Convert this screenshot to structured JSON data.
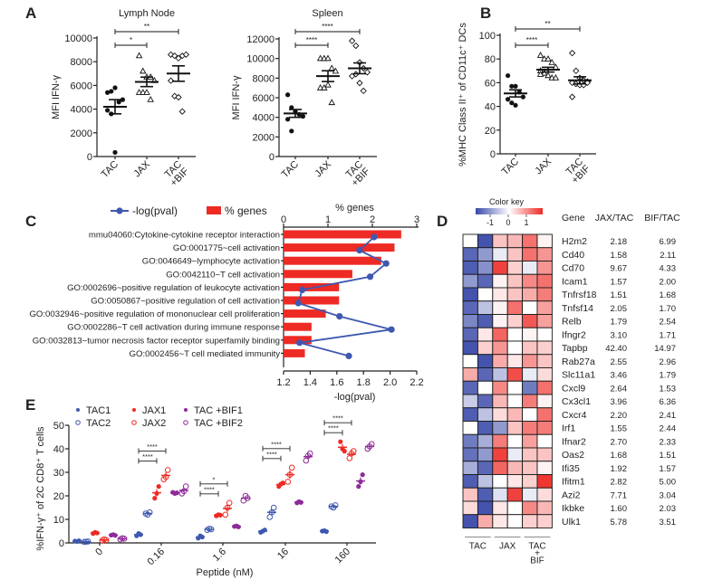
{
  "panel_labels": {
    "a": "A",
    "b": "B",
    "c": "C",
    "d": "D",
    "e": "E"
  },
  "chart_data": [
    {
      "id": "A-lymph",
      "type": "scatter",
      "title": "Lymph Node",
      "ylabel": "MFI IFN-γ",
      "ylim": [
        0,
        10000
      ],
      "yticks": [
        0,
        2000,
        4000,
        6000,
        8000,
        10000
      ],
      "categories": [
        "TAC",
        "JAX",
        "TAC\n+BIF"
      ],
      "markers": [
        "filled-circle",
        "open-triangle",
        "open-diamond"
      ],
      "points": [
        [
          5400,
          5500,
          5800,
          4600,
          4800,
          3900,
          3600,
          350
        ],
        [
          8500,
          7200,
          6700,
          6700,
          6400,
          5400,
          5400,
          5400,
          4800
        ],
        [
          8600,
          8500,
          8300,
          8500,
          8600,
          6400,
          5100,
          5000,
          3800
        ]
      ],
      "mean": [
        4200,
        6300,
        7000
      ],
      "sem": [
        600,
        400,
        650
      ],
      "significance": [
        {
          "from": 0,
          "to": 1,
          "label": "*"
        },
        {
          "from": 0,
          "to": 2,
          "label": "**"
        }
      ]
    },
    {
      "id": "A-spleen",
      "type": "scatter",
      "title": "Spleen",
      "ylabel": "MFI IFN-γ",
      "ylim": [
        0,
        12000
      ],
      "yticks": [
        0,
        2000,
        4000,
        6000,
        8000,
        10000,
        12000
      ],
      "categories": [
        "TAC",
        "JAX",
        "TAC\n+BIF"
      ],
      "markers": [
        "filled-circle",
        "open-triangle",
        "open-diamond"
      ],
      "points": [
        [
          6300,
          5000,
          4600,
          4300,
          4100,
          3800,
          2600
        ],
        [
          10000,
          10000,
          10000,
          9000,
          8700,
          7000,
          7000,
          7300,
          5500
        ],
        [
          11800,
          11300,
          9600,
          9000,
          8600,
          8200,
          8400,
          7500,
          6700
        ]
      ],
      "mean": [
        4400,
        8200,
        9000
      ],
      "sem": [
        400,
        550,
        550
      ],
      "significance": [
        {
          "from": 0,
          "to": 1,
          "label": "****"
        },
        {
          "from": 0,
          "to": 2,
          "label": "****"
        }
      ]
    },
    {
      "id": "B",
      "type": "scatter",
      "title": "",
      "ylabel": "%MHC Class II⁺ of CD11c⁺ DCs",
      "ylim": [
        0,
        100
      ],
      "yticks": [
        0,
        20,
        40,
        60,
        80,
        100
      ],
      "categories": [
        "TAC",
        "JAX",
        "TAC\n+BIF"
      ],
      "markers": [
        "filled-circle",
        "open-triangle",
        "open-diamond"
      ],
      "points": [
        [
          66,
          57,
          57,
          52,
          48,
          46,
          43,
          41
        ],
        [
          83,
          80,
          80,
          77,
          73,
          70,
          68,
          66,
          64,
          64,
          67
        ],
        [
          85,
          70,
          64,
          62,
          61,
          60,
          59,
          58,
          58,
          60,
          48
        ]
      ],
      "mean": [
        51,
        71,
        62
      ],
      "sem": [
        3,
        2,
        3
      ],
      "significance": [
        {
          "from": 0,
          "to": 1,
          "label": "****"
        },
        {
          "from": 0,
          "to": 2,
          "label": "**"
        }
      ]
    },
    {
      "id": "C",
      "type": "bar",
      "legend": [
        {
          "label": "-log(pval)",
          "color": "#3e58b0"
        },
        {
          "label": "% genes",
          "color": "#ee2a24"
        }
      ],
      "top_axis": {
        "label": "% genes",
        "range": [
          0,
          3
        ],
        "ticks": [
          0,
          1,
          2,
          3
        ]
      },
      "bottom_axis": {
        "label": "-log(pval)",
        "range": [
          1.2,
          2.2
        ],
        "ticks": [
          "1.2",
          "1.4",
          "1.6",
          "1.8",
          "2.0",
          "2.2"
        ]
      },
      "categories": [
        "mmu04060:Cytokine-cytokine receptor interaction",
        "GO:0001775~cell activation",
        "GO:0046649~lymphocyte activation",
        "GO:0042110~T cell activation",
        "GO:0002696~positive regulation of leukocyte activation",
        "GO:0050867~positive regulation of cell activation",
        "GO:0032946~positive regulation of mononuclear cell proliferation",
        "GO:0002286~T cell activation during immune response",
        "GO:0032813~tumor necrosis factor receptor superfamily binding",
        "GO:0002456~T cell mediated immunity"
      ],
      "series": [
        {
          "name": "% genes",
          "values": [
            2.65,
            2.5,
            2.2,
            1.55,
            1.25,
            1.25,
            0.95,
            0.63,
            0.63,
            0.48
          ]
        },
        {
          "name": "-log(pval)",
          "values": [
            1.88,
            1.77,
            1.97,
            1.85,
            1.34,
            1.31,
            1.62,
            2.01,
            1.32,
            1.69
          ]
        }
      ]
    },
    {
      "id": "D",
      "type": "heatmap",
      "color_key": {
        "title": "Color key",
        "ticks": [
          "-1",
          "0",
          "1"
        ],
        "range": [
          -1.8,
          1.8
        ],
        "low": "#3949a8",
        "mid": "#ffffff",
        "high": "#ee2a24"
      },
      "column_groups": [
        "TAC",
        "JAX",
        "TAC\n+\nBIF"
      ],
      "table_headers": [
        "Gene",
        "JAX/TAC",
        "BIF/TAC"
      ],
      "rows": [
        {
          "gene": "H2m2",
          "jax_tac": "2.18",
          "bif_tac": "6.99",
          "values": [
            0,
            -1.7,
            0.5,
            0.6,
            1.2,
            0.1
          ]
        },
        {
          "gene": "Cd40",
          "jax_tac": "1.58",
          "bif_tac": "2.11",
          "values": [
            -1.5,
            -1.0,
            -0.2,
            0.5,
            1.2,
            0.9
          ]
        },
        {
          "gene": "Cd70",
          "jax_tac": "9.67",
          "bif_tac": "4.33",
          "values": [
            -1.6,
            -1.1,
            1.6,
            0.4,
            -0.2,
            0.9
          ]
        },
        {
          "gene": "Icam1",
          "jax_tac": "1.57",
          "bif_tac": "2.00",
          "values": [
            -1.0,
            -1.5,
            0.1,
            0.5,
            1.0,
            1.2
          ]
        },
        {
          "gene": "Tnfrsf18",
          "jax_tac": "1.51",
          "bif_tac": "1.68",
          "values": [
            -1.7,
            0.0,
            0.2,
            0.5,
            0.7,
            1.1
          ]
        },
        {
          "gene": "Tnfsf14",
          "jax_tac": "2.05",
          "bif_tac": "1.70",
          "values": [
            -1.5,
            -0.6,
            0.1,
            1.2,
            0.0,
            0.8
          ]
        },
        {
          "gene": "Relb",
          "jax_tac": "1.79",
          "bif_tac": "2.54",
          "values": [
            -1.2,
            -1.6,
            0.1,
            0.4,
            1.4,
            0.8
          ]
        },
        {
          "gene": "Ifngr2",
          "jax_tac": "3.10",
          "bif_tac": "1.71",
          "values": [
            -1.5,
            0.2,
            1.3,
            0.0,
            0.1,
            0.0
          ]
        },
        {
          "gene": "Tapbp",
          "jax_tac": "42.40",
          "bif_tac": "14.97",
          "values": [
            -1.7,
            0.4,
            0.9,
            0.0,
            0.5,
            0.4
          ]
        },
        {
          "gene": "Rab27a",
          "jax_tac": "2.55",
          "bif_tac": "2.96",
          "values": [
            0.0,
            -1.7,
            0.7,
            0.2,
            0.9,
            0.5
          ]
        },
        {
          "gene": "Slc11a1",
          "jax_tac": "3.46",
          "bif_tac": "1.79",
          "values": [
            0.7,
            -1.5,
            -0.6,
            1.5,
            -0.2,
            0.3
          ]
        },
        {
          "gene": "Cxcl9",
          "jax_tac": "2.64",
          "bif_tac": "1.53",
          "values": [
            -1.5,
            0.0,
            1.0,
            0.0,
            -1.3,
            1.2
          ]
        },
        {
          "gene": "Cx3cl1",
          "jax_tac": "3.96",
          "bif_tac": "6.36",
          "values": [
            -0.5,
            -1.5,
            0.6,
            0.0,
            1.1,
            0.1
          ]
        },
        {
          "gene": "Cxcr4",
          "jax_tac": "2.20",
          "bif_tac": "2.41",
          "values": [
            -1.6,
            -0.6,
            0.3,
            0.6,
            0.0,
            1.2
          ]
        },
        {
          "gene": "Irf1",
          "jax_tac": "1.55",
          "bif_tac": "2.44",
          "values": [
            0.0,
            -1.6,
            -1.0,
            0.5,
            1.1,
            1.1
          ]
        },
        {
          "gene": "Ifnar2",
          "jax_tac": "2.70",
          "bif_tac": "2.33",
          "values": [
            -1.3,
            -0.8,
            1.1,
            0.0,
            0.8,
            0.0
          ]
        },
        {
          "gene": "Oas2",
          "jax_tac": "1.68",
          "bif_tac": "1.51",
          "values": [
            -1.4,
            -1.0,
            1.6,
            -0.2,
            0.5,
            0.5
          ]
        },
        {
          "gene": "Ifi35",
          "jax_tac": "1.92",
          "bif_tac": "1.57",
          "values": [
            -0.8,
            -1.5,
            1.3,
            0.6,
            0.5,
            0.1
          ]
        },
        {
          "gene": "Ifitm1",
          "jax_tac": "2.82",
          "bif_tac": "5.00",
          "values": [
            -1.6,
            -0.6,
            0.0,
            0.2,
            0.4,
            1.7
          ]
        },
        {
          "gene": "Azi2",
          "jax_tac": "7.71",
          "bif_tac": "3.04",
          "values": [
            0.5,
            -1.6,
            -0.3,
            1.6,
            -0.2,
            0.3
          ]
        },
        {
          "gene": "Ikbke",
          "jax_tac": "1.60",
          "bif_tac": "2.03",
          "values": [
            0.3,
            -1.7,
            0.2,
            0.0,
            1.0,
            0.6
          ]
        },
        {
          "gene": "Ulk1",
          "jax_tac": "5.78",
          "bif_tac": "3.51",
          "values": [
            -1.7,
            0.7,
            0.2,
            0.0,
            0.4,
            0.4
          ]
        }
      ]
    },
    {
      "id": "E",
      "type": "scatter",
      "xlabel": "Peptide (nM)",
      "ylabel": "%IFN-γ⁺ of 2C CD8⁺ T cells",
      "ylim": [
        0,
        50
      ],
      "yticks": [
        0,
        10,
        20,
        30,
        40,
        50
      ],
      "categories": [
        "0",
        "0.16",
        "1.6",
        "16",
        "160"
      ],
      "series": [
        {
          "name": "TAC1",
          "color": "#3e58b0",
          "filled": true,
          "values": [
            [
              0.8,
              0.6,
              0.9
            ],
            [
              3,
              4,
              3.5
            ],
            [
              2,
              3,
              2.5
            ],
            [
              4.5,
              5,
              5.5
            ],
            [
              5,
              5.2,
              4.8
            ]
          ]
        },
        {
          "name": "TAC2",
          "color": "#3e58b0",
          "filled": false,
          "values": [
            [
              0.4,
              0.5,
              0.6
            ],
            [
              12.5,
              12,
              13
            ],
            [
              5.5,
              6,
              5.8
            ],
            [
              11,
              13,
              15
            ],
            [
              15.5,
              15,
              16
            ]
          ]
        },
        {
          "name": "JAX1",
          "color": "#ee2a24",
          "filled": true,
          "values": [
            [
              4,
              4.5,
              4.2
            ],
            [
              19,
              21,
              24
            ],
            [
              11.5,
              12,
              11.8
            ],
            [
              24,
              25,
              25.5
            ],
            [
              43,
              40,
              39
            ]
          ]
        },
        {
          "name": "JAX2",
          "color": "#ee2a24",
          "filled": false,
          "values": [
            [
              1,
              1.5,
              1.2
            ],
            [
              27,
              28,
              31
            ],
            [
              12,
              15,
              17
            ],
            [
              26,
              29,
              32
            ],
            [
              36,
              38,
              39
            ]
          ]
        },
        {
          "name": "TAC +BIF1",
          "color": "#8e2a99",
          "filled": true,
          "values": [
            [
              3.3,
              3.5,
              3.2
            ],
            [
              21.5,
              21,
              21.3
            ],
            [
              7,
              7.2,
              6.8
            ],
            [
              17,
              17.5,
              17.2
            ],
            [
              24,
              26,
              29
            ]
          ]
        },
        {
          "name": "TAC +BIF2",
          "color": "#8e2a99",
          "filled": false,
          "values": [
            [
              1.5,
              2,
              1.8
            ],
            [
              21,
              22,
              24
            ],
            [
              18,
              20,
              19
            ],
            [
              35,
              37,
              38
            ],
            [
              40,
              41,
              42
            ]
          ]
        }
      ],
      "significance": [
        {
          "category": "0.16",
          "pairs": [
            {
              "a": "TAC1",
              "b": "JAX1",
              "label": "****"
            },
            {
              "a": "TAC1",
              "b": "JAX2",
              "label": "****"
            }
          ]
        },
        {
          "category": "1.6",
          "pairs": [
            {
              "a": "TAC1",
              "b": "JAX1",
              "label": "****"
            },
            {
              "a": "TAC1",
              "b": "JAX2",
              "label": "*"
            }
          ]
        },
        {
          "category": "16",
          "pairs": [
            {
              "a": "TAC1",
              "b": "JAX1",
              "label": "****"
            },
            {
              "a": "TAC1",
              "b": "JAX2",
              "label": "****"
            }
          ]
        },
        {
          "category": "160",
          "pairs": [
            {
              "a": "TAC1",
              "b": "JAX1",
              "label": "****"
            },
            {
              "a": "TAC1",
              "b": "JAX2",
              "label": "****"
            }
          ]
        }
      ]
    }
  ]
}
